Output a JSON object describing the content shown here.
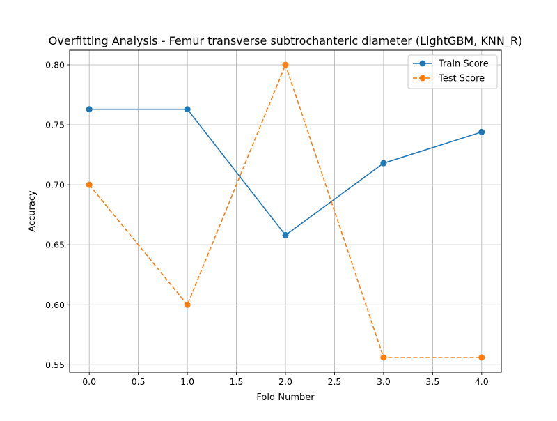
{
  "chart_data": {
    "type": "line",
    "title": "Overfitting Analysis - Femur transverse subtrochanteric diameter (LightGBM, KNN_R)",
    "xlabel": "Fold Number",
    "ylabel": "Accuracy",
    "x": [
      0,
      1,
      2,
      3,
      4
    ],
    "xlim": [
      -0.2,
      4.2
    ],
    "ylim": [
      0.5438,
      0.8122
    ],
    "xticks": [
      "0.0",
      "0.5",
      "1.0",
      "1.5",
      "2.0",
      "2.5",
      "3.0",
      "3.5",
      "4.0"
    ],
    "xtick_values": [
      0,
      0.5,
      1,
      1.5,
      2,
      2.5,
      3,
      3.5,
      4
    ],
    "yticks": [
      "0.55",
      "0.60",
      "0.65",
      "0.70",
      "0.75",
      "0.80"
    ],
    "ytick_values": [
      0.55,
      0.6,
      0.65,
      0.7,
      0.75,
      0.8
    ],
    "grid": true,
    "legend_position": "top-right",
    "series": [
      {
        "name": "Train Score",
        "values": [
          0.763,
          0.763,
          0.658,
          0.718,
          0.744
        ],
        "color": "#1f77b4",
        "line_style": "solid",
        "marker": "circle"
      },
      {
        "name": "Test Score",
        "values": [
          0.7,
          0.6,
          0.8,
          0.556,
          0.556
        ],
        "color": "#ff7f0e",
        "line_style": "dashed",
        "marker": "circle"
      }
    ]
  }
}
